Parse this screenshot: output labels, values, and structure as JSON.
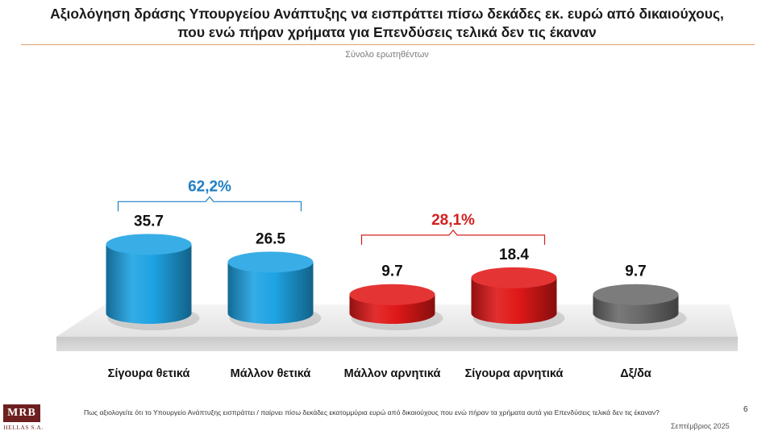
{
  "header": {
    "title_line1": "Αξιολόγηση δράσης Υπουργείου Ανάπτυξης να εισπράττει πίσω δεκάδες εκ. ευρώ από δικαιούχους,",
    "title_line2": "που ενώ πήραν χρήματα για Επενδύσεις τελικά δεν τις έκαναν",
    "subtitle": "Σύνολο ερωτηθέντων"
  },
  "chart_data": {
    "type": "bar",
    "categories": [
      "Σίγουρα θετικά",
      "Μάλλον θετικά",
      "Μάλλον αρνητικά",
      "Σίγουρα αρνητικά",
      "Δξ/δα"
    ],
    "values": [
      35.7,
      26.5,
      9.7,
      18.4,
      9.7
    ],
    "value_labels": [
      "35.7",
      "26.5",
      "9.7",
      "18.4",
      "9.7"
    ],
    "colors": [
      "#1ea3e3",
      "#1ea3e3",
      "#e01818",
      "#e01818",
      "#6a6a6a"
    ],
    "groups": [
      {
        "label": "62,2%",
        "from": 0,
        "to": 1,
        "color": "#1f7fc4"
      },
      {
        "label": "28,1%",
        "from": 2,
        "to": 3,
        "color": "#d42020"
      }
    ],
    "title": "Αξιολόγηση δράσης Υπουργείου Ανάπτυξης να εισπράττει πίσω δεκάδες εκ. ευρώ από δικαιούχους, που ενώ πήραν χρήματα για Επενδύσεις τελικά δεν τις έκαναν",
    "subtitle": "Σύνολο ερωτηθέντων",
    "xlabel": "",
    "ylabel": "",
    "ylim": [
      0,
      40
    ],
    "grid": false
  },
  "footer": {
    "question": "Πως αξιολογείτε ότι το Υπουργείο Ανάπτυξης εισπράττει / παίρνει πίσω δεκάδες εκατομμύρια ευρώ από δικαιούχους που ενώ πήραν τα χρήματα αυτά για Επενδύσεις τελικά δεν τις έκαναν?",
    "page_number": "6",
    "date": "Σεπτέμβριος 2025"
  },
  "logo": {
    "name": "MRB",
    "sub": "HELLAS S.A."
  }
}
